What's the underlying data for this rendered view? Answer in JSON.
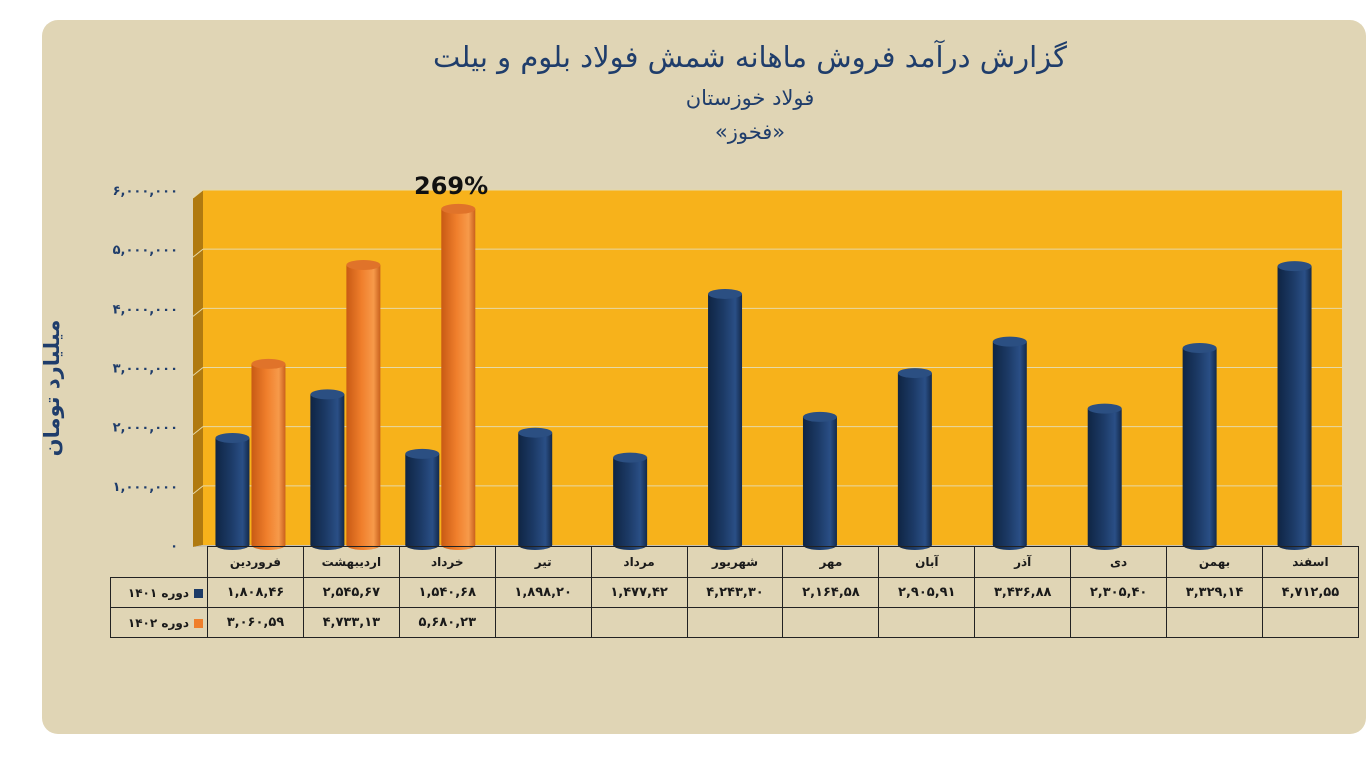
{
  "title": "گزارش درآمد فروش ماهانه شمش فولاد بلوم و بیلت",
  "company": "فولاد خوزستان",
  "ticker": "«فخوز»",
  "annotation": "269%",
  "colors": {
    "series_1401": "#1c3a66",
    "series_1402": "#f07f2c",
    "plot_bg": "#f7b21b",
    "card_bg": "#e0d5b5"
  },
  "chart_data": {
    "type": "bar",
    "title": "گزارش درآمد فروش ماهانه شمش فولاد بلوم و بیلت",
    "ylabel": "میلیارد تومان",
    "xlabel": "",
    "ylim": [
      0,
      6000000
    ],
    "yticks": [
      "۶,۰۰۰,۰۰۰",
      "۵,۰۰۰,۰۰۰",
      "۴,۰۰۰,۰۰۰",
      "۳,۰۰۰,۰۰۰",
      "۲,۰۰۰,۰۰۰",
      "۱,۰۰۰,۰۰۰",
      "۰"
    ],
    "ytick_values": [
      6000000,
      5000000,
      4000000,
      3000000,
      2000000,
      1000000,
      0
    ],
    "grid": true,
    "legend": "table-left",
    "categories": [
      "فروردین",
      "اردیبهشت",
      "خرداد",
      "تیر",
      "مرداد",
      "شهریور",
      "مهر",
      "آبان",
      "آذر",
      "دی",
      "بهمن",
      "اسفند"
    ],
    "series": [
      {
        "name": "دوره ۱۴۰۱",
        "values": [
          1808460,
          2545670,
          1540680,
          1898200,
          1477420,
          4243300,
          2164580,
          2905910,
          3436880,
          2305400,
          3329140,
          4712550
        ],
        "labels": [
          "۱,۸۰۸,۴۶",
          "۲,۵۴۵,۶۷",
          "۱,۵۴۰,۶۸",
          "۱,۸۹۸,۲۰",
          "۱,۴۷۷,۴۲",
          "۴,۲۴۳,۳۰",
          "۲,۱۶۴,۵۸",
          "۲,۹۰۵,۹۱",
          "۳,۴۳۶,۸۸",
          "۲,۳۰۵,۴۰",
          "۳,۳۲۹,۱۴",
          "۴,۷۱۲,۵۵"
        ]
      },
      {
        "name": "دوره ۱۴۰۲",
        "values": [
          3060590,
          4733130,
          5680230,
          null,
          null,
          null,
          null,
          null,
          null,
          null,
          null,
          null
        ],
        "labels": [
          "۳,۰۶۰,۵۹",
          "۴,۷۳۳,۱۳",
          "۵,۶۸۰,۲۳",
          "",
          "",
          "",
          "",
          "",
          "",
          "",
          "",
          ""
        ]
      }
    ]
  }
}
